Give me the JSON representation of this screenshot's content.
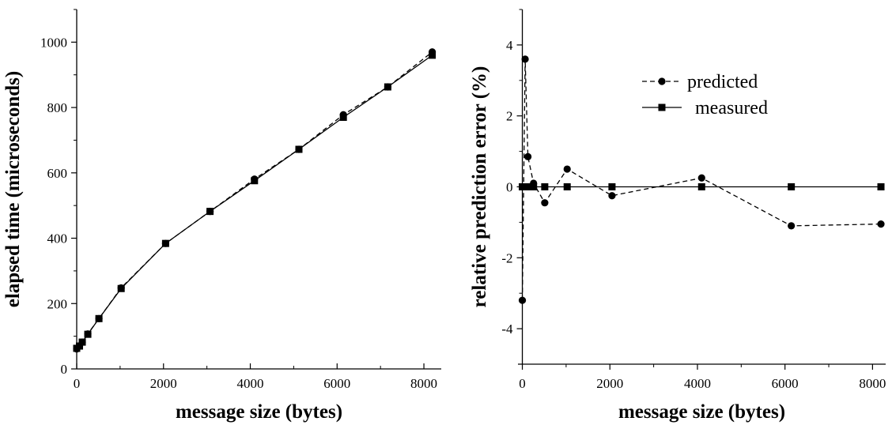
{
  "colors": {
    "ink": "#000000",
    "background": "#ffffff"
  },
  "chart_data": [
    {
      "type": "line",
      "title": "",
      "xlabel": "message size (bytes)",
      "ylabel": "elapsed time (microseconds)",
      "xlim": [
        0,
        8400
      ],
      "ylim": [
        0,
        1100
      ],
      "xticks": [
        0,
        2000,
        4000,
        6000,
        8000
      ],
      "yticks": [
        0,
        200,
        400,
        600,
        800,
        1000
      ],
      "grid": false,
      "legend": "none",
      "series": [
        {
          "style": "dashed",
          "marker": "circle",
          "x": [
            0,
            64,
            128,
            256,
            512,
            1024,
            2048,
            3072,
            4096,
            5120,
            6144,
            7168,
            8192
          ],
          "y": [
            61,
            70,
            82,
            107,
            154,
            248,
            384,
            482,
            581,
            672,
            778,
            863,
            970
          ]
        },
        {
          "style": "solid",
          "marker": "square",
          "x": [
            0,
            64,
            128,
            256,
            512,
            1024,
            2048,
            3072,
            4096,
            5120,
            6144,
            7168,
            8192
          ],
          "y": [
            63,
            70,
            82,
            106,
            154,
            246,
            384,
            482,
            576,
            672,
            770,
            863,
            960
          ]
        }
      ]
    },
    {
      "type": "line",
      "title": "",
      "xlabel": "message size (bytes)",
      "ylabel": "relative prediction error (%)",
      "xlim": [
        -100,
        8300
      ],
      "ylim": [
        -5,
        5
      ],
      "xticks": [
        0,
        2000,
        4000,
        6000,
        8000
      ],
      "yticks": [
        -4,
        -2,
        0,
        2,
        4
      ],
      "grid": false,
      "legend": "top-right",
      "series": [
        {
          "name": "predicted",
          "style": "dashed",
          "marker": "circle",
          "x": [
            0,
            64,
            128,
            256,
            512,
            1024,
            2048,
            4096,
            6144,
            8192
          ],
          "y": [
            -3.2,
            3.6,
            0.85,
            0.1,
            -0.45,
            0.5,
            -0.25,
            0.25,
            -1.1,
            -1.05
          ]
        },
        {
          "name": "measured",
          "style": "solid",
          "marker": "square",
          "x": [
            0,
            64,
            128,
            256,
            512,
            1024,
            2048,
            4096,
            6144,
            8192
          ],
          "y": [
            0,
            0,
            0,
            0,
            0,
            0,
            0,
            0,
            0,
            0
          ]
        }
      ]
    }
  ]
}
